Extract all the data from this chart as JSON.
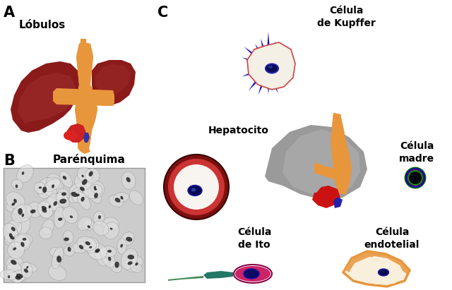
{
  "background_color": "#ffffff",
  "label_A": "A",
  "label_B": "B",
  "label_C": "C",
  "text_lobulos": "Lóbulos",
  "text_parenquima": "Parénquima",
  "text_celula_kupffer": "Célula\nde Kupffer",
  "text_hepatocito": "Hepatocito",
  "text_celula_madre": "Célula\nmadre",
  "text_celula_ito": "Célula\nde Ito",
  "text_celula_endotelial": "Célula\nendotelial",
  "liver_dark": "#7B1010",
  "liver_mid": "#8B1A1A",
  "liver_light": "#A03030",
  "orange_duct": "#E8963C",
  "orange_dark": "#C07020",
  "red_vessel": "#CC2222",
  "blue_vessel": "#3333AA",
  "gray_liver": "#9A9A9A",
  "gray_liver2": "#B5B5B5",
  "kupffer_blue": "#1111CC",
  "kupffer_body": "#F5F0E5",
  "kupffer_outline": "#CC4444",
  "cell_nucleus": "#111166",
  "hep_outer": "#7B1010",
  "hep_ring": "#CC3333",
  "hep_inner": "#F8F5F0",
  "stem_dark": "#050515",
  "ito_pink": "#CC2266",
  "ito_teal": "#227766",
  "ito_tail": "#448844",
  "endo_cream": "#F8F0DC",
  "endo_orange": "#E8963C"
}
